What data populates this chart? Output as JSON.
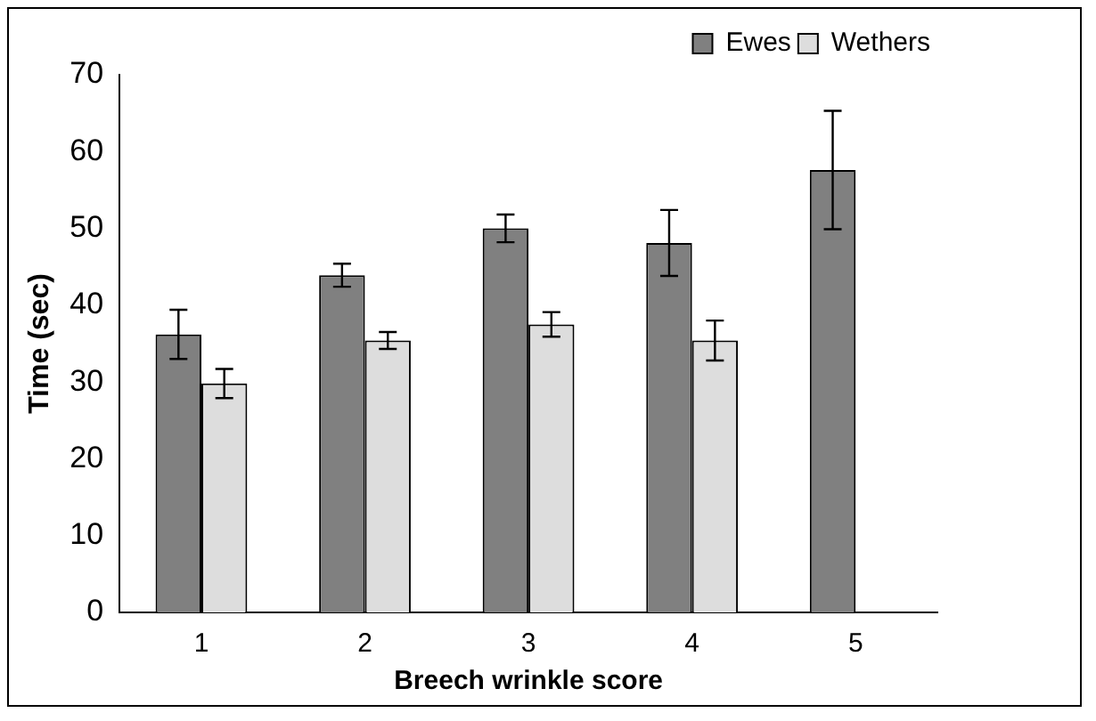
{
  "chart_data": {
    "type": "bar",
    "xlabel": "Breech wrinkle score",
    "ylabel": "Time (sec)",
    "categories": [
      "1",
      "2",
      "3",
      "4",
      "5"
    ],
    "series": [
      {
        "name": "Ewes",
        "color": "#808080",
        "values": [
          36.2,
          43.9,
          50,
          48.1,
          57.6
        ],
        "errors": [
          3.2,
          1.5,
          1.8,
          4.3,
          7.7
        ]
      },
      {
        "name": "Wethers",
        "color": "#dddddd",
        "values": [
          29.8,
          35.4,
          37.5,
          35.4,
          null
        ],
        "errors": [
          1.9,
          1.1,
          1.6,
          2.6,
          null
        ]
      }
    ],
    "ylim": [
      0,
      70
    ],
    "yticks": [
      0,
      10,
      20,
      30,
      40,
      50,
      60,
      70
    ],
    "grid": false,
    "legend": "top right"
  }
}
